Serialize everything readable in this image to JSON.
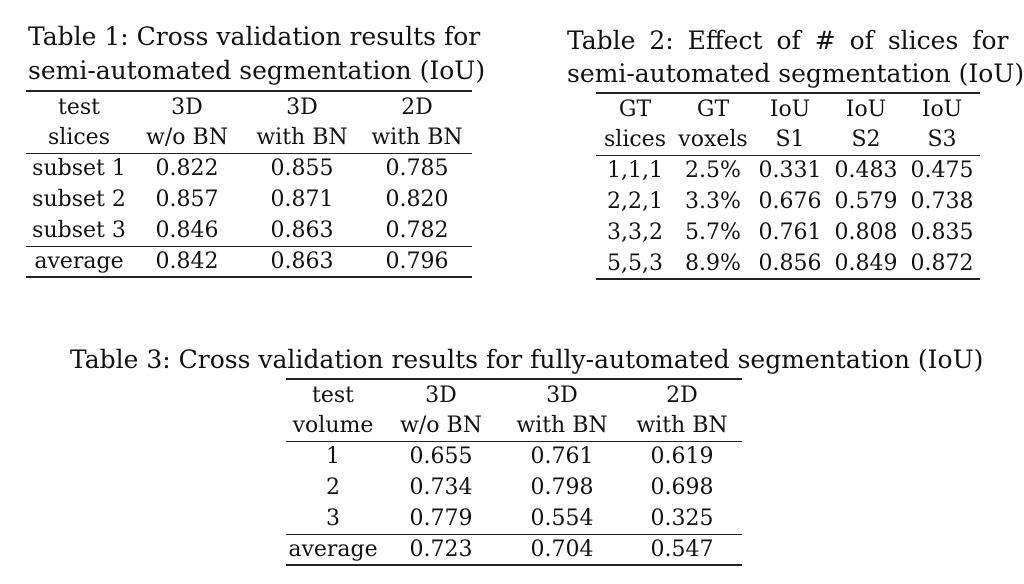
{
  "table1": {
    "caption_line1": "Table 1: Cross validation results for",
    "caption_line2": "semi-automated segmentation (IoU)",
    "header_row1": [
      "test",
      "3D",
      "3D",
      "2D"
    ],
    "header_row2": [
      "slices",
      "w/o BN",
      "with BN",
      "with BN"
    ],
    "rows": [
      [
        "subset 1",
        "0.822",
        "0.855",
        "0.785"
      ],
      [
        "subset 2",
        "0.857",
        "0.871",
        "0.820"
      ],
      [
        "subset 3",
        "0.846",
        "0.863",
        "0.782"
      ]
    ],
    "average_row": [
      "average",
      "0.842",
      "0.863",
      "0.796"
    ]
  },
  "table2": {
    "caption_line1": "Table 2: Effect of # of slices for",
    "caption_line2": "semi-automated segmentation (IoU)",
    "header_row1": [
      "GT",
      "GT",
      "IoU",
      "IoU",
      "IoU"
    ],
    "header_row2": [
      "slices",
      "voxels",
      "S1",
      "S2",
      "S3"
    ],
    "rows": [
      [
        "1,1,1",
        "2.5%",
        "0.331",
        "0.483",
        "0.475"
      ],
      [
        "2,2,1",
        "3.3%",
        "0.676",
        "0.579",
        "0.738"
      ],
      [
        "3,3,2",
        "5.7%",
        "0.761",
        "0.808",
        "0.835"
      ],
      [
        "5,5,3",
        "8.9%",
        "0.856",
        "0.849",
        "0.872"
      ]
    ]
  },
  "table3": {
    "caption": "Table 3: Cross validation results for fully-automated segmentation (IoU)",
    "header_row1": [
      "test",
      "3D",
      "3D",
      "2D"
    ],
    "header_row2": [
      "volume",
      "w/o BN",
      "with BN",
      "with BN"
    ],
    "rows": [
      [
        "1",
        "0.655",
        "0.761",
        "0.619"
      ],
      [
        "2",
        "0.734",
        "0.798",
        "0.698"
      ],
      [
        "3",
        "0.779",
        "0.554",
        "0.325"
      ]
    ],
    "average_row": [
      "average",
      "0.723",
      "0.704",
      "0.547"
    ]
  }
}
